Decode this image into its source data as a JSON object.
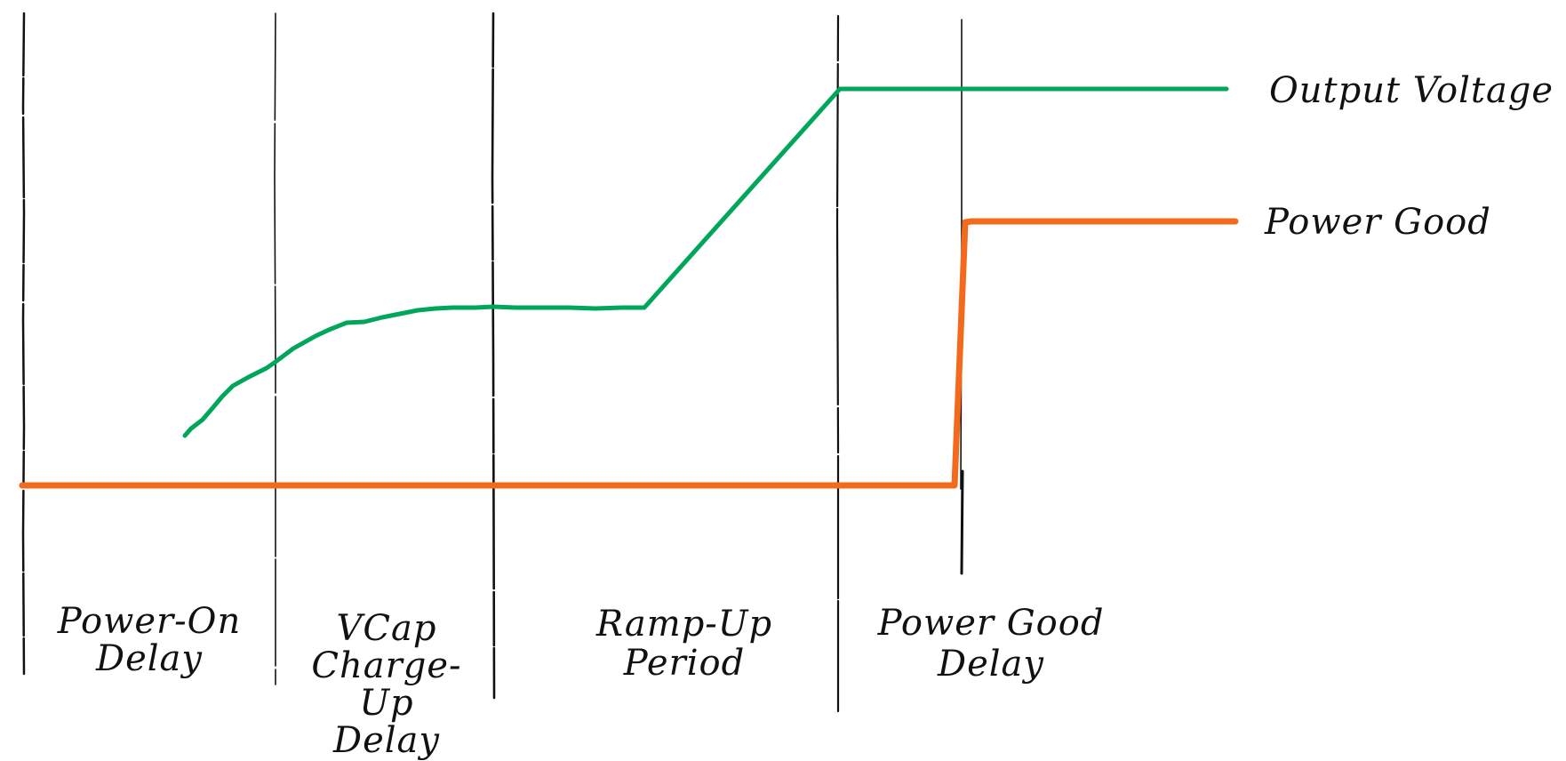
{
  "signals": {
    "output_voltage": {
      "label": "Output Voltage",
      "color": "#00A65A"
    },
    "power_good": {
      "label": "Power Good",
      "color": "#F26B1D"
    }
  },
  "phases": [
    {
      "lines": [
        "Power-On",
        "Delay"
      ]
    },
    {
      "lines": [
        "VCap",
        "Charge-Up",
        "Delay"
      ]
    },
    {
      "lines": [
        "Ramp-Up",
        "Period"
      ]
    },
    {
      "lines": [
        "Power Good",
        "Delay"
      ]
    }
  ],
  "line_color": "#111111"
}
